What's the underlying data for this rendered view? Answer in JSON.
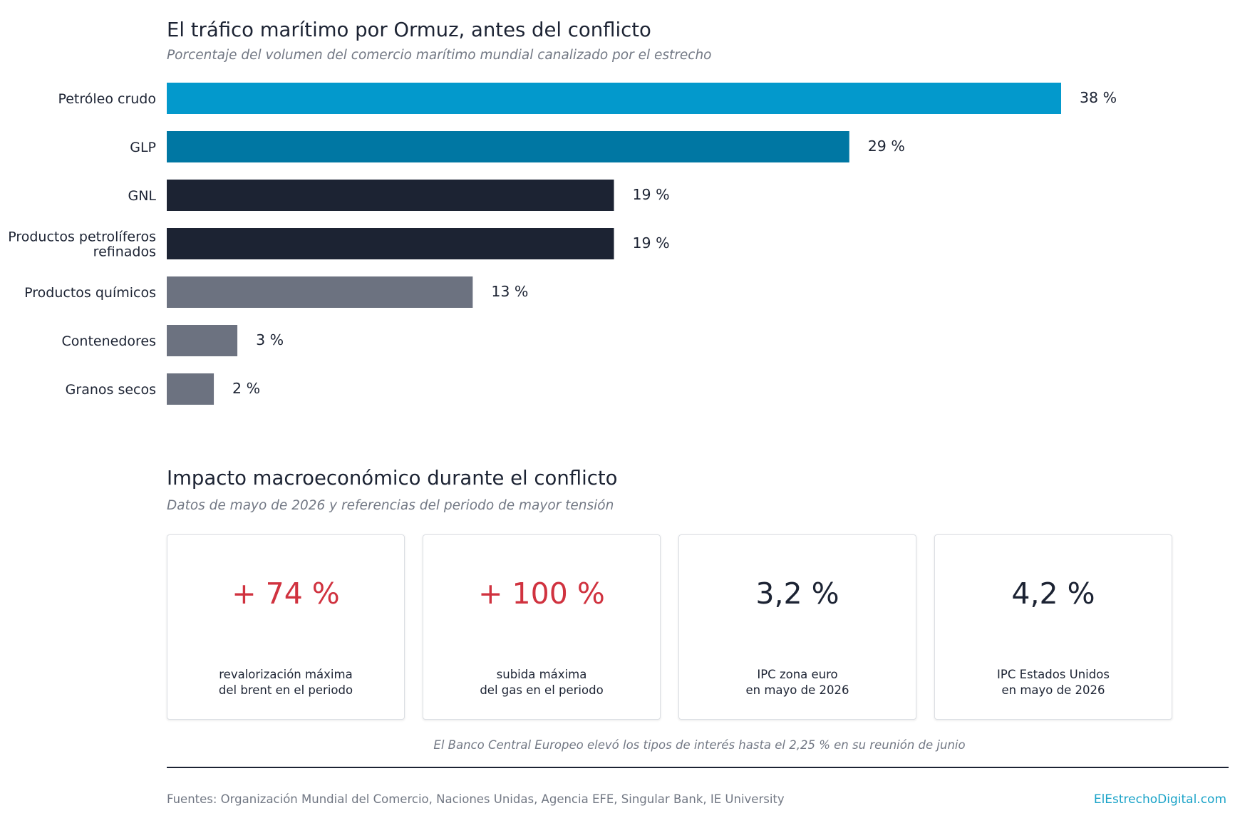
{
  "header": {
    "title": "El tráfico marítimo por Ormuz, antes del conflicto",
    "subtitle": "Porcentaje del volumen del comercio marítimo mundial canalizado por el estrecho"
  },
  "chart_data": {
    "type": "bar",
    "orientation": "horizontal",
    "title": "El tráfico marítimo por Ormuz, antes del conflicto",
    "subtitle": "Porcentaje del volumen del comercio marítimo mundial canalizado por el estrecho",
    "categories": [
      "Petróleo crudo",
      "GLP",
      "GNL",
      "Productos petrolíferos refinados",
      "Productos químicos",
      "Contenedores",
      "Granos secos"
    ],
    "category_lines": [
      [
        "Petróleo crudo"
      ],
      [
        "GLP"
      ],
      [
        "GNL"
      ],
      [
        "Productos petrolíferos",
        "refinados"
      ],
      [
        "Productos químicos"
      ],
      [
        "Contenedores"
      ],
      [
        "Granos secos"
      ]
    ],
    "values": [
      38,
      29,
      19,
      19,
      13,
      3,
      2
    ],
    "value_labels": [
      "38 %",
      "29 %",
      "19 %",
      "19 %",
      "13 %",
      "3 %",
      "2 %"
    ],
    "bar_colors": [
      "#0399cc",
      "#0077a3",
      "#1c2333",
      "#1c2333",
      "#6c7280",
      "#6c7280",
      "#6c7280"
    ],
    "xlim": [
      0,
      38
    ],
    "grid": false,
    "legend": false
  },
  "macro": {
    "title": "Impacto macroeconómico durante el conflicto",
    "subtitle": "Datos de mayo de 2026 y referencias del periodo de mayor tensión",
    "cards": [
      {
        "value": "+ 74 %",
        "desc_line1": "revalorización máxima",
        "desc_line2": "del brent en el periodo"
      },
      {
        "value": "+ 100 %",
        "desc_line1": "subida máxima",
        "desc_line2": "del gas en el periodo"
      },
      {
        "value": "3,2 %",
        "desc_line1": "IPC zona euro",
        "desc_line2": "en mayo de 2026"
      },
      {
        "value": "4,2 %",
        "desc_line1": "IPC Estados Unidos",
        "desc_line2": "en mayo de 2026"
      }
    ],
    "note": "El Banco Central Europeo elevó los tipos de interés hasta el 2,25 % en su reunión de junio"
  },
  "footer": {
    "sources": "Fuentes: Organización Mundial del Comercio, Naciones Unidas, Agencia EFE, Singular Bank, IE University",
    "brand": "ElEstrechoDigital.com"
  },
  "colors": {
    "brand": "#1aa3c8",
    "positive_change": "#d0323f",
    "neutral_value": "#1c2333",
    "muted_text": "#727884"
  }
}
